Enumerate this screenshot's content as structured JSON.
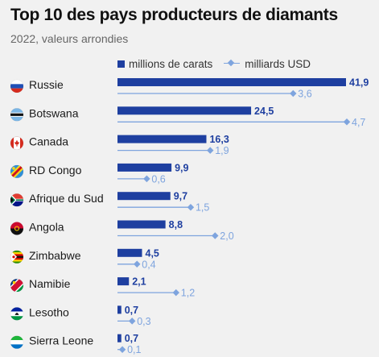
{
  "header": {
    "title": "Top 10 des pays producteurs de diamants",
    "subtitle": "2022, valeurs arrondies"
  },
  "legend": {
    "carats_label": "millions de carats",
    "usd_label": "milliards USD"
  },
  "colors": {
    "carats": "#1e3fa0",
    "usd": "#7ea4de"
  },
  "chart_data": {
    "type": "bar",
    "title": "Top 10 des pays producteurs de diamants",
    "subtitle": "2022, valeurs arrondies",
    "legend_position": "top",
    "grid": false,
    "categories": [
      "Russie",
      "Botswana",
      "Canada",
      "RD Congo",
      "Afrique du Sud",
      "Angola",
      "Zimbabwe",
      "Namibie",
      "Lesotho",
      "Sierra Leone"
    ],
    "flags": [
      "russia-flag-icon",
      "botswana-flag-icon",
      "canada-flag-icon",
      "dr-congo-flag-icon",
      "south-africa-flag-icon",
      "angola-flag-icon",
      "zimbabwe-flag-icon",
      "namibia-flag-icon",
      "lesotho-flag-icon",
      "sierra-leone-flag-icon"
    ],
    "series": [
      {
        "name": "millions de carats",
        "values": [
          41.9,
          24.5,
          16.3,
          9.9,
          9.7,
          8.8,
          4.5,
          2.1,
          0.7,
          0.7
        ],
        "labels": [
          "41,9",
          "24,5",
          "16,3",
          "9,9",
          "9,7",
          "8,8",
          "4,5",
          "2,1",
          "0,7",
          "0,7"
        ]
      },
      {
        "name": "milliards USD",
        "values": [
          3.6,
          4.7,
          1.9,
          0.6,
          1.5,
          2.0,
          0.4,
          1.2,
          0.3,
          0.1
        ],
        "labels": [
          "3,6",
          "4,7",
          "1,9",
          "0,6",
          "1,5",
          "2,0",
          "0,4",
          "1,2",
          "0,3",
          "0,1"
        ]
      }
    ]
  }
}
